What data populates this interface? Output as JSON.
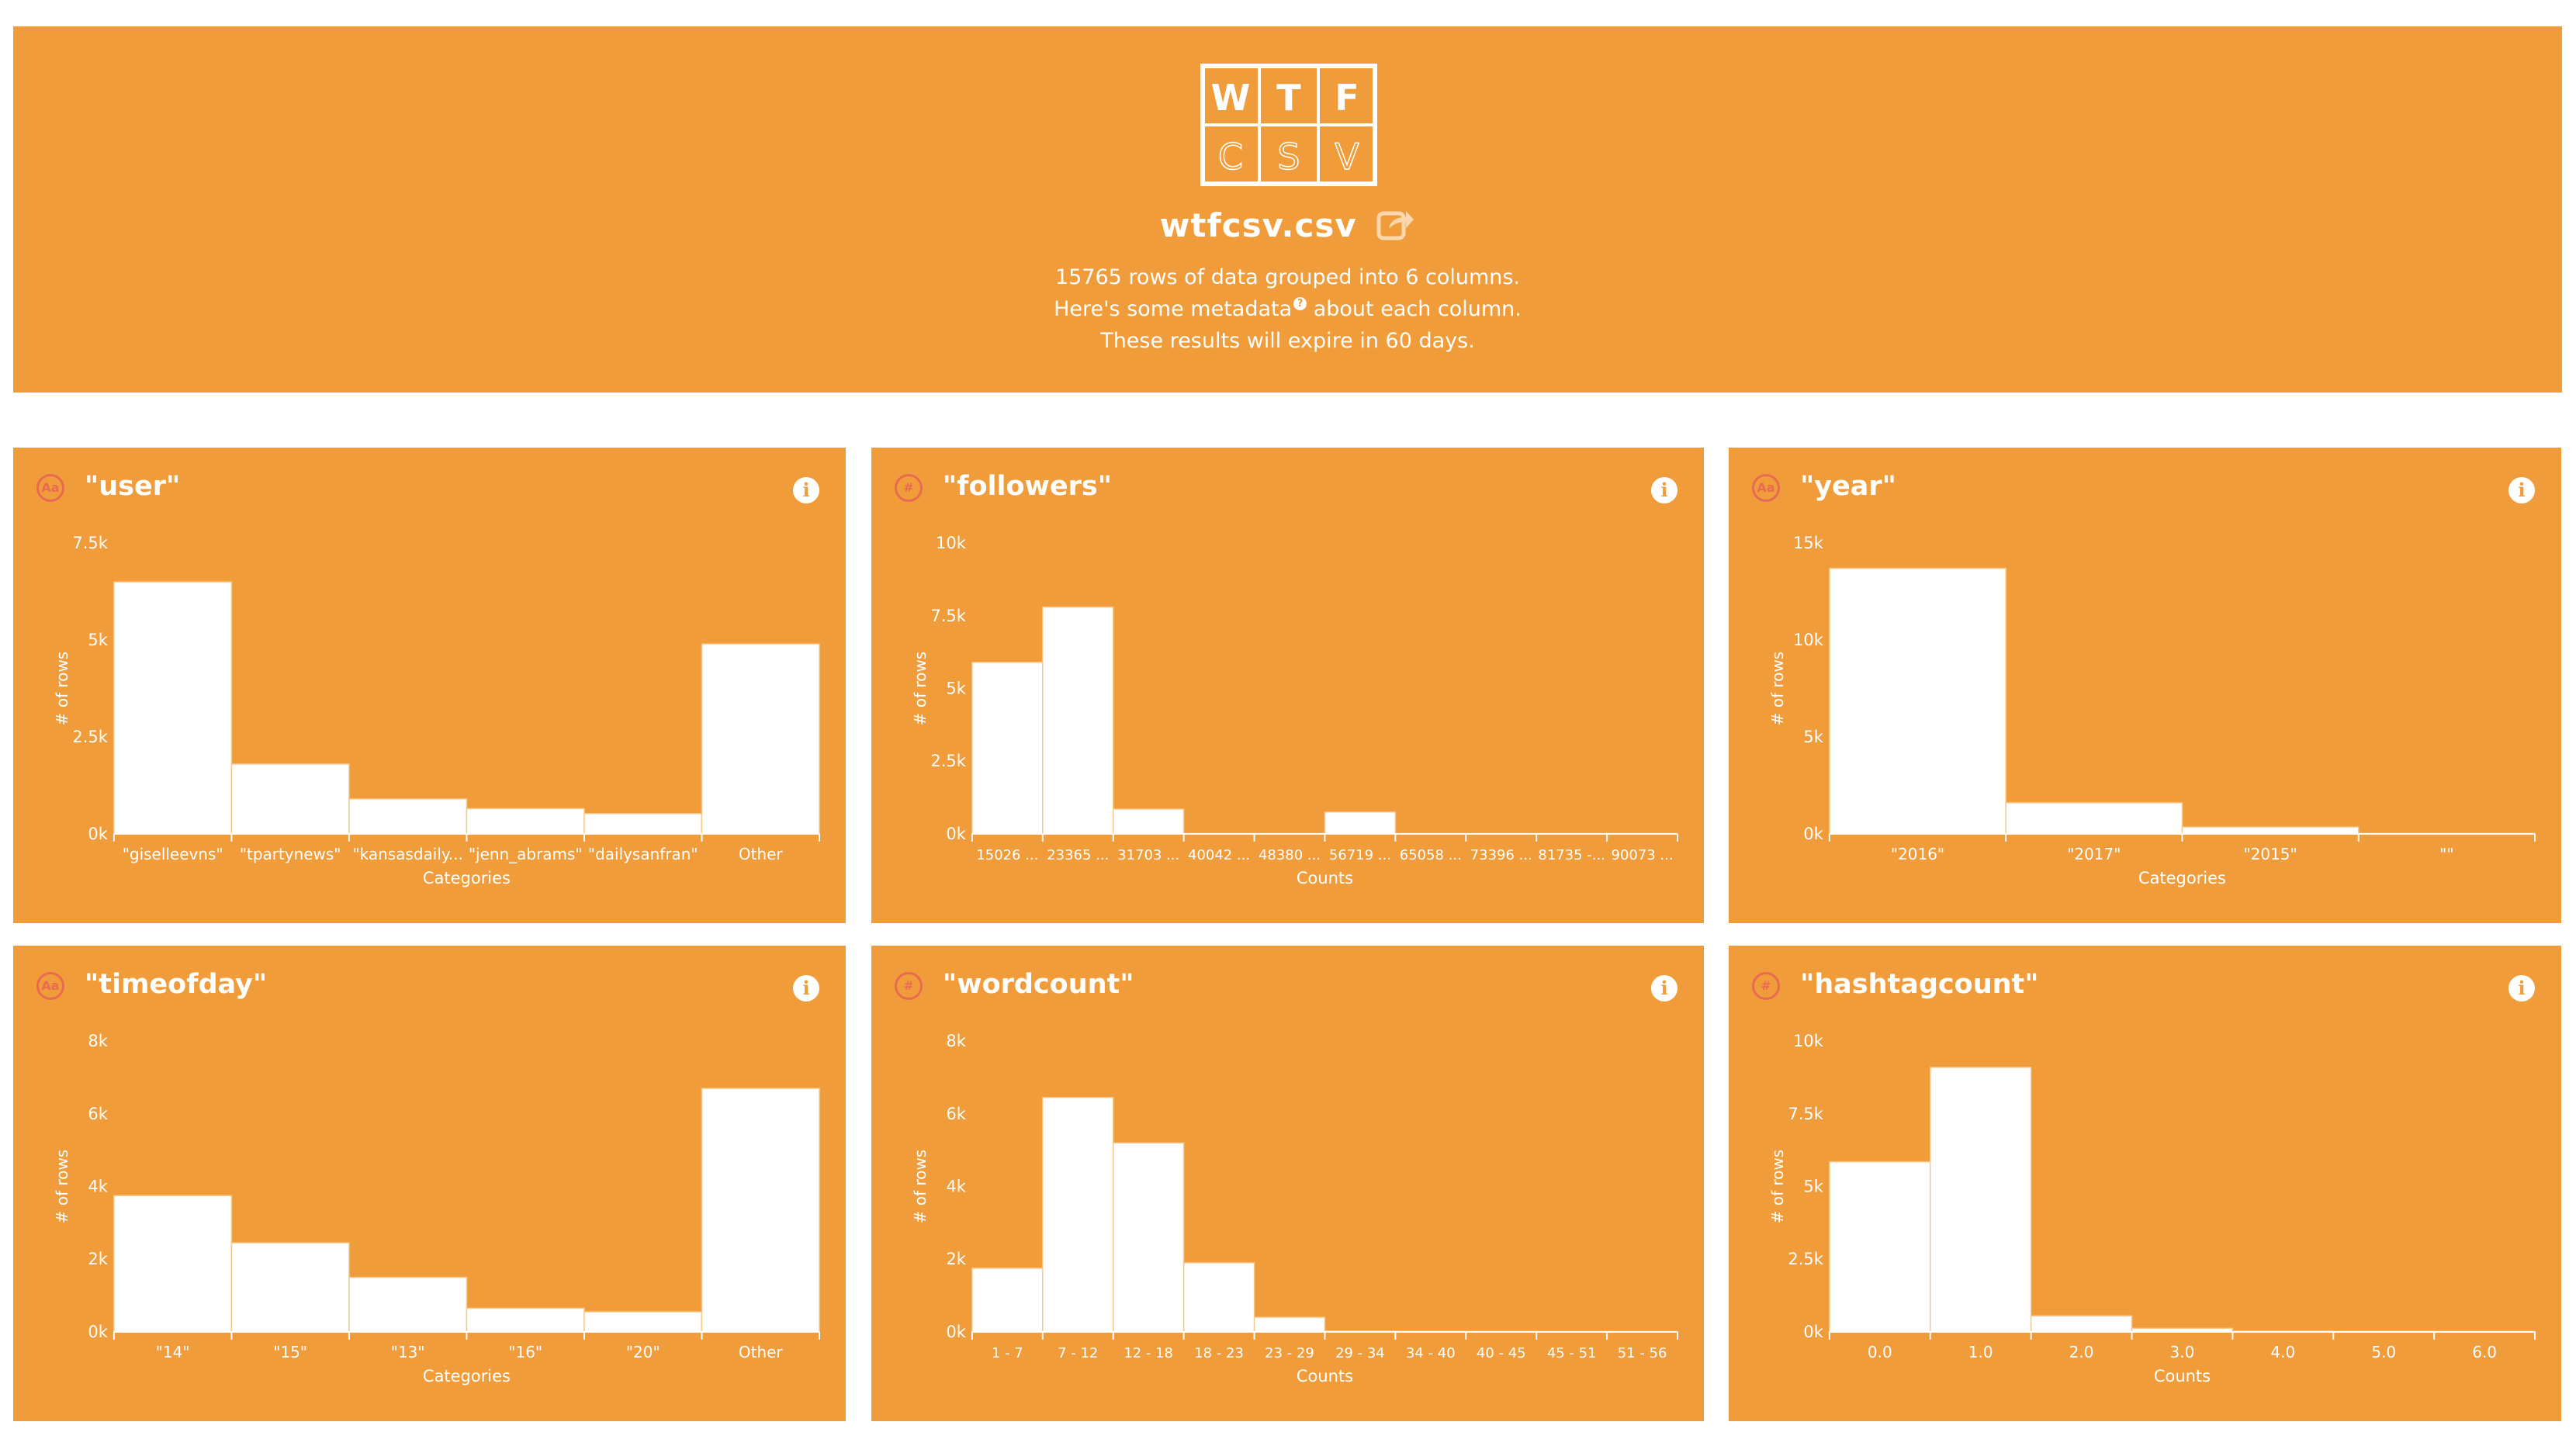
{
  "header": {
    "logo_letters": [
      "W",
      "T",
      "F",
      "C",
      "S",
      "V"
    ],
    "file_name": "wtfcsv.csv",
    "line1": "15765 rows of data grouped into 6 columns.",
    "line2_before": "Here's some metadata",
    "line2_after": " about each column.",
    "help_glyph": "?",
    "line3": "These results will expire in 60 days.",
    "share_icon": "share-icon",
    "colors": {
      "background": "#f19c3b",
      "text": "#ffffff",
      "type_icon": "#e86a50"
    }
  },
  "cards": [
    {
      "title": "\"user\"",
      "type_icon_glyph": "Aa",
      "info_glyph": "i",
      "chart_data": {
        "type": "bar",
        "ylabel": "# of rows",
        "xlabel": "Categories",
        "categories": [
          "\"giselleevns\"",
          "\"tpartynews\"",
          "\"kansasdaily...",
          "\"jenn_abrams\"",
          "\"dailysanfran\"",
          "Other"
        ],
        "values": [
          6500,
          1800,
          900,
          650,
          520,
          4900
        ],
        "yticks": [
          "0k",
          "2.5k",
          "5k",
          "7.5k"
        ],
        "ylim": [
          0,
          7500
        ]
      }
    },
    {
      "title": "\"followers\"",
      "type_icon_glyph": "#",
      "info_glyph": "i",
      "chart_data": {
        "type": "bar",
        "ylabel": "# of rows",
        "xlabel": "Counts",
        "categories": [
          "15026 ...",
          "23365 ...",
          "31703 ...",
          "40042 ...",
          "48380 ...",
          "56719 ...",
          "65058 ...",
          "73396 ...",
          "81735 -...",
          "90073 ..."
        ],
        "values": [
          5900,
          7800,
          850,
          0,
          0,
          750,
          0,
          0,
          0,
          0
        ],
        "yticks": [
          "0k",
          "2.5k",
          "5k",
          "7.5k",
          "10k"
        ],
        "ylim": [
          0,
          10000
        ]
      }
    },
    {
      "title": "\"year\"",
      "type_icon_glyph": "Aa",
      "info_glyph": "i",
      "chart_data": {
        "type": "bar",
        "ylabel": "# of rows",
        "xlabel": "Categories",
        "categories": [
          "\"2016\"",
          "\"2017\"",
          "\"2015\"",
          "\"\""
        ],
        "values": [
          13700,
          1600,
          350,
          10
        ],
        "yticks": [
          "0k",
          "5k",
          "10k",
          "15k"
        ],
        "ylim": [
          0,
          15000
        ]
      }
    },
    {
      "title": "\"timeofday\"",
      "type_icon_glyph": "Aa",
      "info_glyph": "i",
      "chart_data": {
        "type": "bar",
        "ylabel": "# of rows",
        "xlabel": "Categories",
        "categories": [
          "\"14\"",
          "\"15\"",
          "\"13\"",
          "\"16\"",
          "\"20\"",
          "Other"
        ],
        "values": [
          3750,
          2450,
          1500,
          650,
          550,
          6700
        ],
        "yticks": [
          "0k",
          "2k",
          "4k",
          "6k",
          "8k"
        ],
        "ylim": [
          0,
          8000
        ]
      }
    },
    {
      "title": "\"wordcount\"",
      "type_icon_glyph": "#",
      "info_glyph": "i",
      "chart_data": {
        "type": "bar",
        "ylabel": "# of rows",
        "xlabel": "Counts",
        "categories": [
          "1 - 7",
          "7 - 12",
          "12 - 18",
          "18 - 23",
          "23 - 29",
          "29 - 34",
          "34 - 40",
          "40 - 45",
          "45 - 51",
          "51 - 56"
        ],
        "values": [
          1750,
          6450,
          5200,
          1900,
          400,
          20,
          10,
          5,
          3,
          2
        ],
        "yticks": [
          "0k",
          "2k",
          "4k",
          "6k",
          "8k"
        ],
        "ylim": [
          0,
          8000
        ]
      }
    },
    {
      "title": "\"hashtagcount\"",
      "type_icon_glyph": "#",
      "info_glyph": "i",
      "chart_data": {
        "type": "bar",
        "ylabel": "# of rows",
        "xlabel": "Counts",
        "categories": [
          "0.0",
          "1.0",
          "2.0",
          "3.0",
          "4.0",
          "5.0",
          "6.0"
        ],
        "values": [
          5850,
          9100,
          550,
          120,
          20,
          10,
          5
        ],
        "yticks": [
          "0k",
          "2.5k",
          "5k",
          "7.5k",
          "10k"
        ],
        "ylim": [
          0,
          10000
        ]
      }
    }
  ]
}
